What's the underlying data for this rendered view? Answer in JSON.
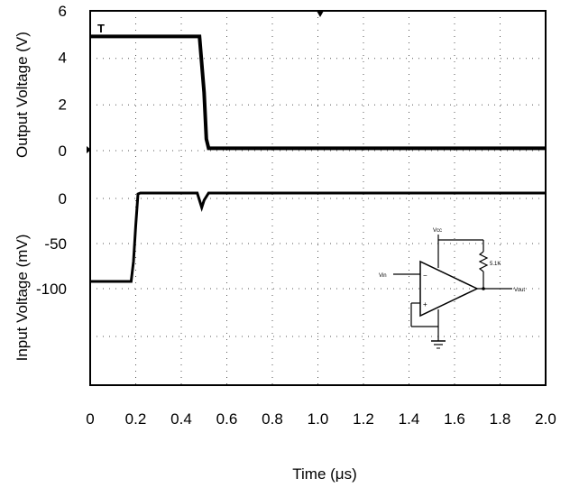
{
  "chart_data": [
    {
      "type": "line",
      "xlabel": "Time (μs)",
      "ylabel": "Output Voltage (V)",
      "xlim": [
        0,
        2.0
      ],
      "x_ticks": [
        "0",
        "0.2",
        "0.4",
        "0.6",
        "0.8",
        "1.0",
        "1.2",
        "1.4",
        "1.6",
        "1.8",
        "2.0"
      ],
      "y_ticks": [
        "6",
        "4",
        "2",
        "0"
      ],
      "ylim": [
        0,
        6
      ],
      "grid": true,
      "series": [
        {
          "x": [
            0,
            0.05,
            0.1,
            0.2,
            0.3,
            0.4,
            0.48,
            0.5,
            0.51,
            0.52,
            0.6,
            0.8,
            1.0,
            1.2,
            1.4,
            1.6,
            1.8,
            2.0
          ],
          "y": [
            4.9,
            4.9,
            4.9,
            4.9,
            4.9,
            4.9,
            4.9,
            2.5,
            0.5,
            0.1,
            0.1,
            0.1,
            0.1,
            0.1,
            0.1,
            0.1,
            0.1,
            0.1
          ]
        }
      ]
    },
    {
      "type": "line",
      "xlabel": "Time (μs)",
      "ylabel": "Input Voltage (mV)",
      "xlim": [
        0,
        2.0
      ],
      "y_ticks": [
        "0",
        "-50",
        "-100"
      ],
      "ylim": [
        -200,
        0
      ],
      "grid": true,
      "series": [
        {
          "x": [
            0,
            0.1,
            0.18,
            0.19,
            0.2,
            0.21,
            0.22,
            0.3,
            0.4,
            0.47,
            0.48,
            0.49,
            0.5,
            0.52,
            0.6,
            0.8,
            1.0,
            1.2,
            1.4,
            1.6,
            1.8,
            2.0
          ],
          "y": [
            -92,
            -92,
            -92,
            -70,
            -30,
            5,
            6,
            6,
            6,
            6,
            -2,
            -10,
            -2,
            6,
            6,
            6,
            6,
            6,
            6,
            6,
            6,
            6
          ]
        }
      ]
    }
  ],
  "inset": {
    "vcc_label": "Vcc",
    "resistor_label": "5.1K",
    "vin_label": "Vin",
    "vout_label": "Vout"
  }
}
